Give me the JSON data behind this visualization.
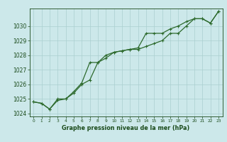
{
  "background_color": "#cce8ea",
  "line1_x": [
    0,
    1,
    2,
    3,
    4,
    5,
    6,
    7,
    8,
    9,
    10,
    11,
    12,
    13,
    14,
    15,
    16,
    17,
    18,
    19,
    20,
    21,
    22,
    23
  ],
  "line1_y": [
    1024.8,
    1024.7,
    1024.3,
    1024.9,
    1025.0,
    1025.4,
    1026.0,
    1026.3,
    1027.5,
    1027.8,
    1028.2,
    1028.3,
    1028.4,
    1028.4,
    1028.6,
    1028.8,
    1029.0,
    1029.5,
    1029.5,
    1030.0,
    1030.5,
    1030.5,
    1030.2,
    1031.0
  ],
  "line2_x": [
    0,
    1,
    2,
    3,
    4,
    5,
    6,
    7,
    8,
    9,
    10,
    11,
    12,
    13,
    14,
    15,
    16,
    17,
    18,
    19,
    20,
    21,
    22,
    23
  ],
  "line2_y": [
    1024.8,
    1024.7,
    1024.3,
    1025.0,
    1025.0,
    1025.5,
    1026.1,
    1027.5,
    1027.5,
    1028.0,
    1028.2,
    1028.3,
    1028.4,
    1028.5,
    1029.5,
    1029.5,
    1029.5,
    1029.8,
    1030.0,
    1030.3,
    1030.5,
    1030.5,
    1030.2,
    1031.0
  ],
  "ylim": [
    1023.8,
    1031.2
  ],
  "xlim": [
    -0.5,
    23.5
  ],
  "yticks": [
    1024,
    1025,
    1026,
    1027,
    1028,
    1029,
    1030
  ],
  "xticks": [
    0,
    1,
    2,
    3,
    4,
    5,
    6,
    7,
    8,
    9,
    10,
    11,
    12,
    13,
    14,
    15,
    16,
    17,
    18,
    19,
    20,
    21,
    22,
    23
  ],
  "xlabel": "Graphe pression niveau de la mer (hPa)",
  "line_color": "#2d6a2d",
  "grid_color": "#aacfcf",
  "text_color": "#1a4a1a",
  "marker_size": 3,
  "linewidth": 0.9,
  "ytick_fontsize": 5.5,
  "xtick_fontsize": 4.2,
  "xlabel_fontsize": 5.8
}
